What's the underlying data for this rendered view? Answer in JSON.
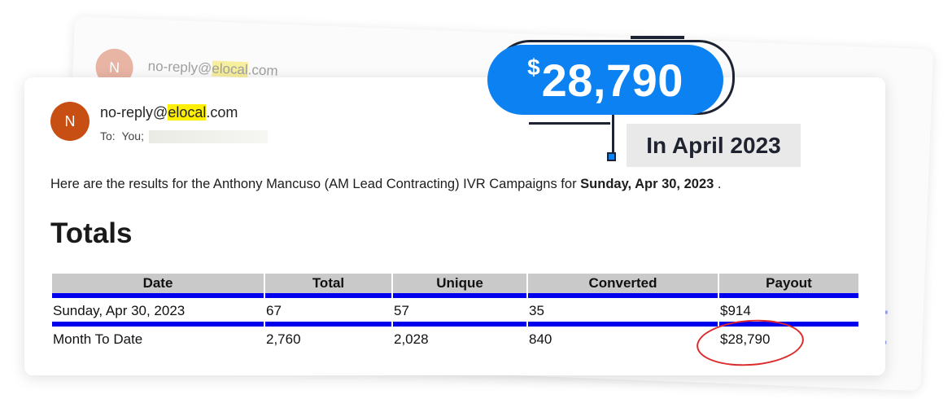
{
  "background_email": {
    "avatar_initial": "N",
    "sender_prefix": "no-reply@",
    "sender_highlight": "elocal",
    "sender_suffix": ".com"
  },
  "email": {
    "avatar_initial": "N",
    "sender_prefix": "no-reply@",
    "sender_highlight": "elocal",
    "sender_suffix": ".com",
    "to_label": "To:",
    "to_value": "You;",
    "intro_text": "Here are the results for the Anthony Mancuso (AM Lead Contracting) IVR Campaigns for ",
    "intro_date": "Sunday, Apr 30, 2023",
    "intro_end": " .",
    "section_title": "Totals",
    "table": {
      "headers": [
        "Date",
        "Total",
        "Unique",
        "Converted",
        "Payout"
      ],
      "rows": [
        [
          "Sunday, Apr 30, 2023",
          "67",
          "57",
          "35",
          "$914"
        ],
        [
          "Month To Date",
          "2,760",
          "2,028",
          "840",
          "$28,790"
        ]
      ]
    }
  },
  "callout": {
    "currency": "$",
    "amount": "28,790",
    "period": "In April 2023"
  },
  "colors": {
    "accent_blue": "#0c82f2",
    "table_rule": "#0000ee",
    "highlight": "#ffef00",
    "avatar": "#c84f13",
    "circle": "#dd2a2a"
  }
}
